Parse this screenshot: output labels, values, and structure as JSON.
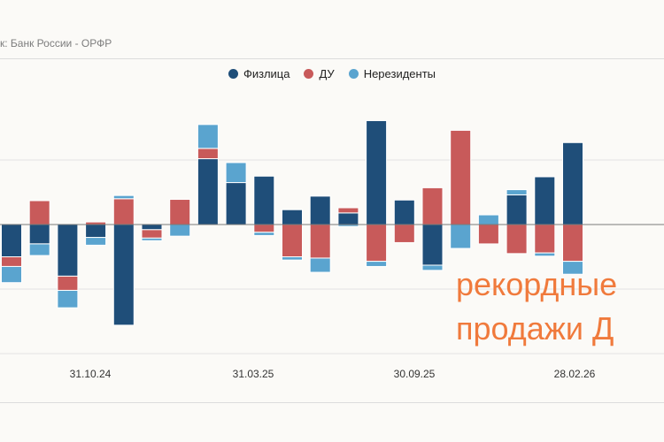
{
  "source_text": "к: Банк России - ОРФР",
  "legend": [
    {
      "label": "Физлица",
      "color": "#1f4e79"
    },
    {
      "label": "ДУ",
      "color": "#c85a5a"
    },
    {
      "label": "Нерезиденты",
      "color": "#5aa4cf"
    }
  ],
  "annotation": {
    "line1": "рекордные",
    "line2": "продажи Д"
  },
  "chart_data": {
    "type": "bar",
    "stacked": true,
    "x_tick_labels": [
      "31.10.24",
      "31.03.25",
      "30.09.25",
      "28.02.26"
    ],
    "ylim": [
      -200,
      160
    ],
    "grid": true,
    "legend_position": "top-center",
    "series": [
      {
        "name": "Физлица",
        "color": "#1f4e79",
        "values": [
          -50,
          -30,
          -80,
          -20,
          -156,
          -8,
          0,
          102,
          65,
          75,
          23,
          44,
          18,
          161,
          38,
          -63,
          0,
          0,
          46,
          74,
          127
        ]
      },
      {
        "name": "ДУ",
        "color": "#c85a5a",
        "values": [
          -15,
          37,
          -22,
          4,
          40,
          -13,
          39,
          16,
          0,
          -12,
          -50,
          -52,
          8,
          -57,
          -28,
          57,
          146,
          -30,
          -45,
          -44,
          -57
        ]
      },
      {
        "name": "Нерезиденты",
        "color": "#5aa4cf",
        "values": [
          -25,
          -18,
          -27,
          -12,
          5,
          -4,
          -18,
          37,
          31,
          -5,
          -5,
          -22,
          -3,
          -8,
          0,
          -8,
          -37,
          15,
          8,
          -5,
          -20
        ]
      }
    ]
  }
}
